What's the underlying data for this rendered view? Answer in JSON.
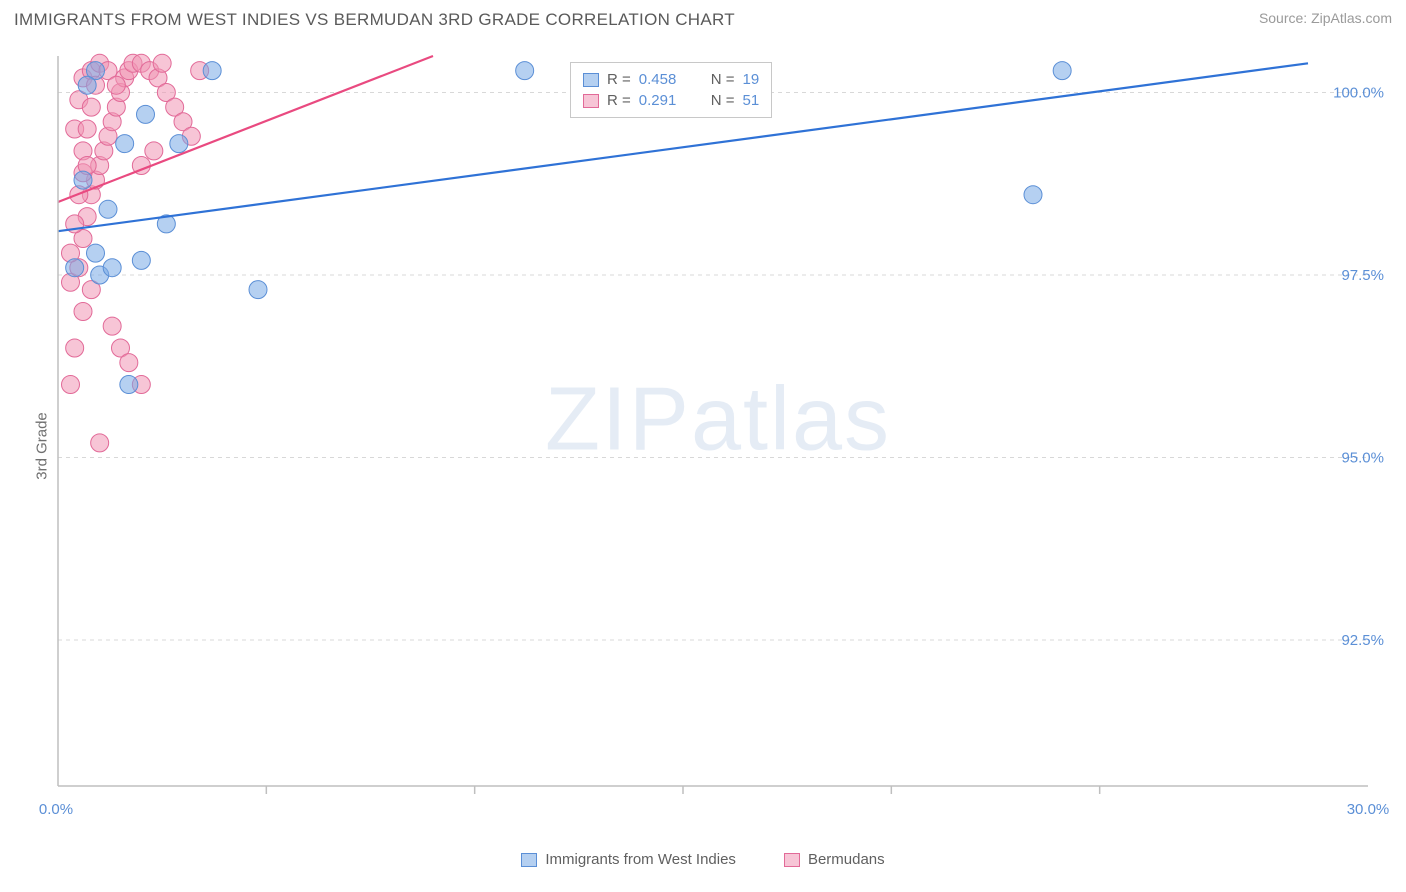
{
  "header": {
    "title": "IMMIGRANTS FROM WEST INDIES VS BERMUDAN 3RD GRADE CORRELATION CHART",
    "source": "Source: ZipAtlas.com"
  },
  "ylabel": "3rd Grade",
  "watermark": "ZIPatlas",
  "chart": {
    "type": "scatter",
    "background_color": "#ffffff",
    "grid_color": "#d8d8d8",
    "axis_color": "#bfbfbf",
    "tick_color": "#5b8fd6",
    "tick_fontsize": 15,
    "ylabel_fontsize": 15,
    "title_fontsize": 17,
    "xlim": [
      0,
      30
    ],
    "ylim": [
      90.5,
      100.5
    ],
    "xticks": [
      {
        "v": 0.0,
        "label": "0.0%"
      },
      {
        "v": 30.0,
        "label": "30.0%"
      }
    ],
    "yticks": [
      {
        "v": 92.5,
        "label": "92.5%"
      },
      {
        "v": 95.0,
        "label": "95.0%"
      },
      {
        "v": 97.5,
        "label": "97.5%"
      },
      {
        "v": 100.0,
        "label": "100.0%"
      }
    ],
    "x_minor_ticks": [
      5,
      10,
      15,
      20,
      25
    ],
    "series": {
      "blue": {
        "name": "Immigrants from West Indies",
        "fill": "rgba(120,170,230,0.55)",
        "stroke": "#5b8fd6",
        "marker_radius": 9,
        "trend_color": "#2f72d6",
        "trend_width": 2.2,
        "trend": {
          "x1": 0,
          "y1": 98.1,
          "x2": 30,
          "y2": 100.4
        },
        "points": [
          {
            "x": 0.4,
            "y": 97.6
          },
          {
            "x": 1.0,
            "y": 97.5
          },
          {
            "x": 1.3,
            "y": 97.6
          },
          {
            "x": 0.9,
            "y": 97.8
          },
          {
            "x": 2.0,
            "y": 97.7
          },
          {
            "x": 1.6,
            "y": 99.3
          },
          {
            "x": 2.1,
            "y": 99.7
          },
          {
            "x": 2.9,
            "y": 99.3
          },
          {
            "x": 2.6,
            "y": 98.2
          },
          {
            "x": 3.7,
            "y": 100.3
          },
          {
            "x": 1.7,
            "y": 96.0
          },
          {
            "x": 0.9,
            "y": 100.3
          },
          {
            "x": 0.7,
            "y": 100.1
          },
          {
            "x": 4.8,
            "y": 97.3
          },
          {
            "x": 11.2,
            "y": 100.3
          },
          {
            "x": 23.4,
            "y": 98.6
          },
          {
            "x": 24.1,
            "y": 100.3
          },
          {
            "x": 0.6,
            "y": 98.8
          },
          {
            "x": 1.2,
            "y": 98.4
          }
        ]
      },
      "pink": {
        "name": "Bermudans",
        "fill": "rgba(240,150,180,0.55)",
        "stroke": "#e26a98",
        "marker_radius": 9,
        "trend_color": "#e94a80",
        "trend_width": 2.2,
        "trend": {
          "x1": 0,
          "y1": 98.5,
          "x2": 9.0,
          "y2": 100.5
        },
        "points": [
          {
            "x": 0.3,
            "y": 97.4
          },
          {
            "x": 0.5,
            "y": 97.6
          },
          {
            "x": 0.6,
            "y": 98.0
          },
          {
            "x": 0.7,
            "y": 98.3
          },
          {
            "x": 0.8,
            "y": 98.6
          },
          {
            "x": 0.9,
            "y": 98.8
          },
          {
            "x": 1.0,
            "y": 99.0
          },
          {
            "x": 1.1,
            "y": 99.2
          },
          {
            "x": 1.2,
            "y": 99.4
          },
          {
            "x": 1.3,
            "y": 99.6
          },
          {
            "x": 1.4,
            "y": 99.8
          },
          {
            "x": 1.5,
            "y": 100.0
          },
          {
            "x": 1.6,
            "y": 100.2
          },
          {
            "x": 1.7,
            "y": 100.3
          },
          {
            "x": 1.8,
            "y": 100.4
          },
          {
            "x": 2.0,
            "y": 100.4
          },
          {
            "x": 2.2,
            "y": 100.3
          },
          {
            "x": 2.4,
            "y": 100.2
          },
          {
            "x": 2.6,
            "y": 100.0
          },
          {
            "x": 2.8,
            "y": 99.8
          },
          {
            "x": 3.0,
            "y": 99.6
          },
          {
            "x": 3.2,
            "y": 99.4
          },
          {
            "x": 3.4,
            "y": 100.3
          },
          {
            "x": 0.4,
            "y": 99.5
          },
          {
            "x": 0.5,
            "y": 99.9
          },
          {
            "x": 0.6,
            "y": 100.2
          },
          {
            "x": 0.8,
            "y": 100.3
          },
          {
            "x": 1.0,
            "y": 100.4
          },
          {
            "x": 1.2,
            "y": 100.3
          },
          {
            "x": 1.4,
            "y": 100.1
          },
          {
            "x": 0.6,
            "y": 99.2
          },
          {
            "x": 0.7,
            "y": 99.5
          },
          {
            "x": 0.8,
            "y": 99.8
          },
          {
            "x": 0.9,
            "y": 100.1
          },
          {
            "x": 2.0,
            "y": 99.0
          },
          {
            "x": 2.3,
            "y": 99.2
          },
          {
            "x": 0.5,
            "y": 98.6
          },
          {
            "x": 0.4,
            "y": 98.2
          },
          {
            "x": 0.3,
            "y": 97.8
          },
          {
            "x": 1.5,
            "y": 96.5
          },
          {
            "x": 1.7,
            "y": 96.3
          },
          {
            "x": 2.0,
            "y": 96.0
          },
          {
            "x": 1.3,
            "y": 96.8
          },
          {
            "x": 1.0,
            "y": 95.2
          },
          {
            "x": 0.8,
            "y": 97.3
          },
          {
            "x": 0.6,
            "y": 97.0
          },
          {
            "x": 0.4,
            "y": 96.5
          },
          {
            "x": 0.3,
            "y": 96.0
          },
          {
            "x": 0.6,
            "y": 98.9
          },
          {
            "x": 0.7,
            "y": 99.0
          },
          {
            "x": 2.5,
            "y": 100.4
          }
        ]
      }
    }
  },
  "stats_legend": {
    "rows": [
      {
        "swatch": "blue",
        "r_label": "R =",
        "r_value": "0.458",
        "n_label": "N =",
        "n_value": "19"
      },
      {
        "swatch": "pink",
        "r_label": "R =",
        "r_value": "0.291",
        "n_label": "N =",
        "n_value": "51"
      }
    ]
  },
  "bottom_legend": {
    "items": [
      {
        "swatch": "blue",
        "label": "Immigrants from West Indies"
      },
      {
        "swatch": "pink",
        "label": "Bermudans"
      }
    ]
  }
}
